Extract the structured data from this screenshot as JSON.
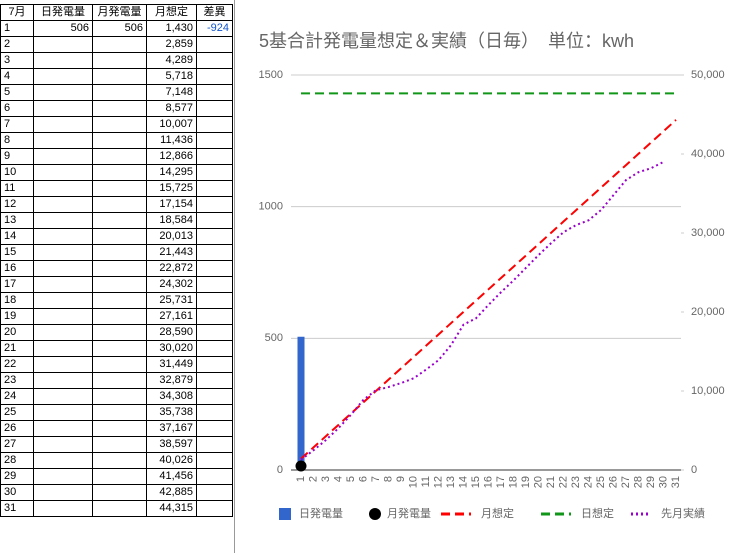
{
  "table": {
    "header": [
      "7月",
      "日発電量",
      "月発電量",
      "月想定",
      "差異"
    ],
    "rows": [
      [
        "1",
        "506",
        "506",
        "1,430",
        "-924"
      ],
      [
        "2",
        null,
        null,
        "2,859",
        null
      ],
      [
        "3",
        null,
        null,
        "4,289",
        null
      ],
      [
        "4",
        null,
        null,
        "5,718",
        null
      ],
      [
        "5",
        null,
        null,
        "7,148",
        null
      ],
      [
        "6",
        null,
        null,
        "8,577",
        null
      ],
      [
        "7",
        null,
        null,
        "10,007",
        null
      ],
      [
        "8",
        null,
        null,
        "11,436",
        null
      ],
      [
        "9",
        null,
        null,
        "12,866",
        null
      ],
      [
        "10",
        null,
        null,
        "14,295",
        null
      ],
      [
        "11",
        null,
        null,
        "15,725",
        null
      ],
      [
        "12",
        null,
        null,
        "17,154",
        null
      ],
      [
        "13",
        null,
        null,
        "18,584",
        null
      ],
      [
        "14",
        null,
        null,
        "20,013",
        null
      ],
      [
        "15",
        null,
        null,
        "21,443",
        null
      ],
      [
        "16",
        null,
        null,
        "22,872",
        null
      ],
      [
        "17",
        null,
        null,
        "24,302",
        null
      ],
      [
        "18",
        null,
        null,
        "25,731",
        null
      ],
      [
        "19",
        null,
        null,
        "27,161",
        null
      ],
      [
        "20",
        null,
        null,
        "28,590",
        null
      ],
      [
        "21",
        null,
        null,
        "30,020",
        null
      ],
      [
        "22",
        null,
        null,
        "31,449",
        null
      ],
      [
        "23",
        null,
        null,
        "32,879",
        null
      ],
      [
        "24",
        null,
        null,
        "34,308",
        null
      ],
      [
        "25",
        null,
        null,
        "35,738",
        null
      ],
      [
        "26",
        null,
        null,
        "37,167",
        null
      ],
      [
        "27",
        null,
        null,
        "38,597",
        null
      ],
      [
        "28",
        null,
        null,
        "40,026",
        null
      ],
      [
        "29",
        null,
        null,
        "41,456",
        null
      ],
      [
        "30",
        null,
        null,
        "42,885",
        null
      ],
      [
        "31",
        null,
        null,
        "44,315",
        null
      ]
    ]
  },
  "chart_data": {
    "type": "combo",
    "title": "5基合計発電量想定＆実績（日毎）　単位：kwh",
    "categories": [
      "1",
      "2",
      "3",
      "4",
      "5",
      "6",
      "7",
      "8",
      "9",
      "10",
      "11",
      "12",
      "13",
      "14",
      "15",
      "16",
      "17",
      "18",
      "19",
      "20",
      "21",
      "22",
      "23",
      "24",
      "25",
      "26",
      "27",
      "28",
      "29",
      "30",
      "31"
    ],
    "ylim": [
      0,
      1500
    ],
    "yticks": [
      0,
      500,
      1000,
      1500
    ],
    "y2lim": [
      0,
      50000
    ],
    "y2ticks": [
      0,
      {
        "value": 10000,
        "label": "10,000"
      },
      {
        "value": 20000,
        "label": "20,000"
      },
      {
        "value": 30000,
        "label": "30,000"
      },
      {
        "value": 40000,
        "label": "40,000"
      },
      {
        "value": 50000,
        "label": "50,000"
      }
    ],
    "grid": true,
    "legend": "bottom",
    "series": [
      {
        "name": "日発電量",
        "type": "bar",
        "color": "#3366cc",
        "values": [
          506,
          null,
          null,
          null,
          null,
          null,
          null,
          null,
          null,
          null,
          null,
          null,
          null,
          null,
          null,
          null,
          null,
          null,
          null,
          null,
          null,
          null,
          null,
          null,
          null,
          null,
          null,
          null,
          null,
          null,
          null
        ]
      },
      {
        "name": "月発電量",
        "type": "scatter",
        "axis": "y2",
        "color": "#000000",
        "values": [
          506,
          null,
          null,
          null,
          null,
          null,
          null,
          null,
          null,
          null,
          null,
          null,
          null,
          null,
          null,
          null,
          null,
          null,
          null,
          null,
          null,
          null,
          null,
          null,
          null,
          null,
          null,
          null,
          null,
          null,
          null
        ]
      },
      {
        "name": "月想定",
        "type": "line",
        "dash": "dashed",
        "axis": "y2",
        "color": "#ff0000",
        "values": [
          1430,
          2859,
          4289,
          5718,
          7148,
          8577,
          10007,
          11436,
          12866,
          14295,
          15725,
          17154,
          18584,
          20013,
          21443,
          22872,
          24302,
          25731,
          27161,
          28590,
          30020,
          31449,
          32879,
          34308,
          35738,
          37167,
          38597,
          40026,
          41456,
          42885,
          44315
        ]
      },
      {
        "name": "日想定",
        "type": "line",
        "dash": "dashed",
        "color": "#109618",
        "values": [
          1430,
          1430,
          1430,
          1430,
          1430,
          1430,
          1430,
          1430,
          1430,
          1430,
          1430,
          1430,
          1430,
          1430,
          1430,
          1430,
          1430,
          1430,
          1430,
          1430,
          1430,
          1430,
          1430,
          1430,
          1430,
          1430,
          1430,
          1430,
          1430,
          1430,
          1430
        ]
      },
      {
        "name": "先月実績",
        "type": "line",
        "dash": "dotted",
        "axis": "y2",
        "color": "#9900cc",
        "values": [
          1300,
          2500,
          3800,
          5300,
          7000,
          8900,
          10100,
          10500,
          11000,
          11600,
          12700,
          13900,
          15800,
          18400,
          19200,
          20900,
          22500,
          24000,
          25600,
          27200,
          28700,
          30100,
          31000,
          31600,
          32900,
          34800,
          36700,
          37700,
          38200,
          39000,
          null
        ]
      }
    ]
  }
}
